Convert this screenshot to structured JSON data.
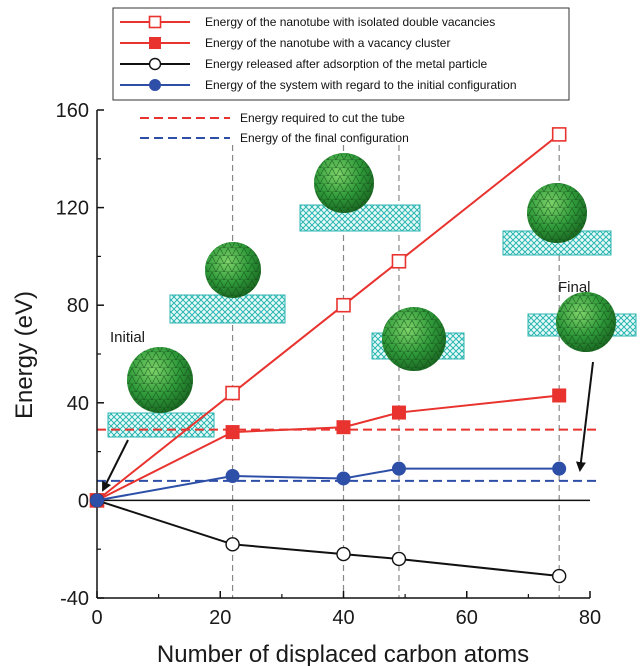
{
  "chart_data": {
    "type": "line",
    "title": "",
    "xlabel": "Number of displaced carbon atoms",
    "ylabel": "Energy (eV)",
    "xlim": [
      0,
      80
    ],
    "ylim": [
      -40,
      160
    ],
    "xticks": [
      0,
      20,
      40,
      60,
      80
    ],
    "yticks": [
      -40,
      0,
      40,
      80,
      120,
      160
    ],
    "grid": false,
    "legend_position": "top",
    "series": [
      {
        "name": "Energy of the nanotube with isolated double vacancies",
        "color": "#e8332f",
        "marker": "open-square",
        "x": [
          0,
          22,
          40,
          49,
          75
        ],
        "y": [
          0,
          44,
          80,
          98,
          150
        ]
      },
      {
        "name": "Energy of the nanotube with a vacancy cluster",
        "color": "#e8332f",
        "marker": "filled-square",
        "x": [
          0,
          22,
          40,
          49,
          75
        ],
        "y": [
          0,
          28,
          30,
          36,
          43
        ]
      },
      {
        "name": "Energy released after adsorption of the metal particle",
        "color": "#111111",
        "marker": "open-circle",
        "x": [
          0,
          22,
          40,
          49,
          75
        ],
        "y": [
          0,
          -18,
          -22,
          -24,
          -31
        ]
      },
      {
        "name": "Energy of the system with regard to the initial configuration",
        "color": "#2e4fa8",
        "marker": "filled-circle",
        "x": [
          0,
          22,
          40,
          49,
          75
        ],
        "y": [
          0,
          10,
          9,
          13,
          13
        ]
      }
    ],
    "reference_lines": [
      {
        "name": "Energy required to cut the tube",
        "color": "#e8332f",
        "style": "dashed",
        "y": 29
      },
      {
        "name": "Energy of the final configuration",
        "color": "#2e4fa8",
        "style": "dashed",
        "y": 8
      }
    ],
    "zero_line": {
      "y": 0,
      "color": "#111111"
    },
    "vertical_guides": {
      "x": [
        22,
        40,
        49,
        75
      ],
      "color": "#888888",
      "style": "dashed"
    },
    "annotations": [
      {
        "text": "Initial",
        "icon": "nanotube-with-particle-icon"
      },
      {
        "text": "Final",
        "icon": "nanotube-with-particle-icon"
      }
    ],
    "structure_insets": [
      {
        "x": 22,
        "icon": "nanotube-with-particle-icon"
      },
      {
        "x": 40,
        "icon": "nanotube-with-particle-icon"
      },
      {
        "x": 49,
        "icon": "nanotube-with-particle-icon"
      },
      {
        "x": 75,
        "icon": "nanotube-with-particle-icon"
      }
    ],
    "colors": {
      "tube": "#2bb5b0",
      "particle": "#2f9a3a"
    }
  }
}
